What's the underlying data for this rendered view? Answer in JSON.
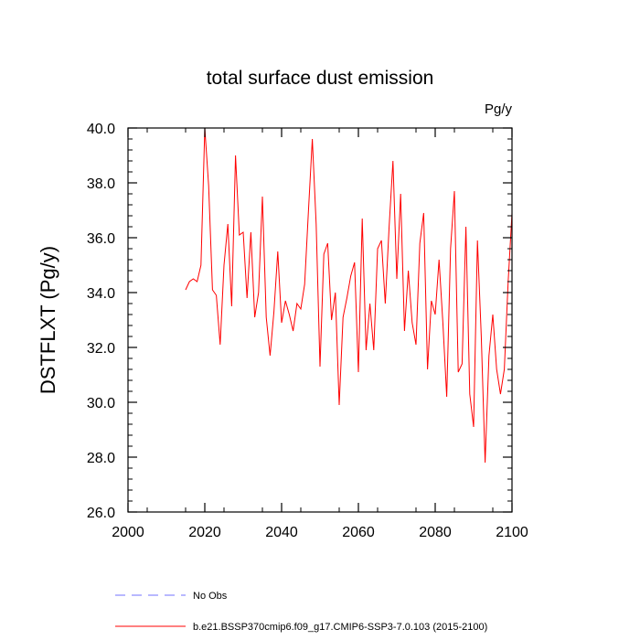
{
  "chart_data": {
    "type": "line",
    "title": "total surface dust emission",
    "units": "Pg/y",
    "ylabel": "DSTFLXT  (Pg/y)",
    "xlabel": "",
    "xlim": [
      2000,
      2100
    ],
    "ylim": [
      26.0,
      40.0
    ],
    "xticks": [
      2000,
      2020,
      2040,
      2060,
      2080,
      2100
    ],
    "xtick_labels": [
      "2000",
      "2020",
      "2040",
      "2060",
      "2080",
      "2100"
    ],
    "yticks": [
      26.0,
      28.0,
      30.0,
      32.0,
      34.0,
      36.0,
      38.0,
      40.0
    ],
    "ytick_labels": [
      "26.0",
      "28.0",
      "30.0",
      "32.0",
      "34.0",
      "36.0",
      "38.0",
      "40.0"
    ],
    "series": [
      {
        "name": "b.e21.BSSP370cmip6.f09_g17.CMIP6-SSP3-7.0.103 (2015-2100)",
        "color": "#ff0000",
        "x": [
          2015,
          2016,
          2017,
          2018,
          2019,
          2020,
          2021,
          2022,
          2023,
          2024,
          2025,
          2026,
          2027,
          2028,
          2029,
          2030,
          2031,
          2032,
          2033,
          2034,
          2035,
          2036,
          2037,
          2038,
          2039,
          2040,
          2041,
          2042,
          2043,
          2044,
          2045,
          2046,
          2047,
          2048,
          2049,
          2050,
          2051,
          2052,
          2053,
          2054,
          2055,
          2056,
          2057,
          2058,
          2059,
          2060,
          2061,
          2062,
          2063,
          2064,
          2065,
          2066,
          2067,
          2068,
          2069,
          2070,
          2071,
          2072,
          2073,
          2074,
          2075,
          2076,
          2077,
          2078,
          2079,
          2080,
          2081,
          2082,
          2083,
          2084,
          2085,
          2086,
          2087,
          2088,
          2089,
          2090,
          2091,
          2092,
          2093,
          2094,
          2095,
          2096,
          2097,
          2098,
          2099,
          2100
        ],
        "values": [
          34.1,
          34.4,
          34.5,
          34.4,
          35.0,
          40.0,
          37.9,
          34.1,
          33.9,
          32.1,
          35.0,
          36.5,
          33.5,
          39.0,
          36.1,
          36.2,
          33.8,
          36.2,
          33.1,
          34.0,
          37.5,
          33.1,
          31.7,
          33.3,
          35.5,
          32.9,
          33.7,
          33.2,
          32.6,
          33.6,
          33.4,
          34.3,
          37.0,
          39.6,
          36.5,
          31.3,
          35.4,
          35.8,
          33.0,
          34.0,
          29.9,
          33.1,
          33.8,
          34.6,
          35.1,
          31.1,
          36.7,
          31.9,
          33.6,
          31.9,
          35.6,
          35.9,
          33.6,
          36.4,
          38.8,
          34.5,
          37.6,
          32.6,
          34.8,
          32.9,
          32.1,
          35.8,
          36.9,
          31.2,
          33.7,
          33.2,
          35.2,
          32.9,
          30.2,
          35.6,
          37.7,
          31.1,
          31.4,
          36.4,
          30.3,
          29.1,
          35.9,
          32.4,
          27.8,
          31.7,
          33.2,
          31.2,
          30.3,
          31.2,
          34.4,
          36.9
        ]
      }
    ],
    "legend": [
      {
        "label": "No Obs",
        "color": "#7070ff",
        "style": "dashed"
      },
      {
        "label": "b.e21.BSSP370cmip6.f09_g17.CMIP6-SSP3-7.0.103 (2015-2100)",
        "color": "#ff0000",
        "style": "solid"
      }
    ],
    "grid": false,
    "legend_position": "bottom"
  }
}
